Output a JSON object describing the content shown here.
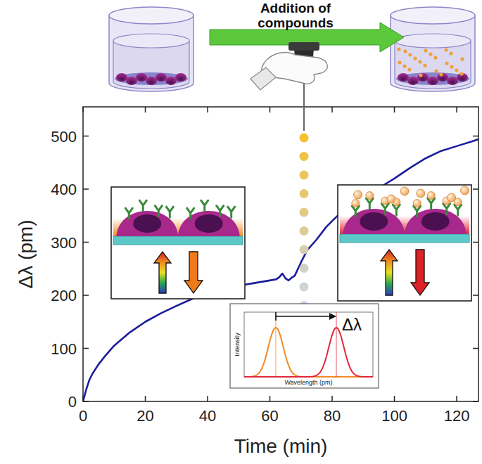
{
  "chart_data": {
    "type": "line",
    "x_label": "Time (min)",
    "y_label": "Δλ (pm)",
    "annotations": [
      "Addition of compounds"
    ],
    "inset": {
      "label": "Δλ",
      "x_label": "Wavelength (pm)",
      "y_label": "Intensity"
    },
    "x": [
      0,
      1,
      2,
      3,
      5,
      7,
      10,
      15,
      20,
      25,
      30,
      35,
      40,
      45,
      50,
      55,
      60,
      62,
      63,
      64,
      65,
      66,
      67,
      68,
      70,
      72,
      75,
      78,
      80,
      85,
      90,
      95,
      100,
      105,
      110,
      115,
      120,
      125,
      127
    ],
    "values": [
      0,
      22,
      40,
      52,
      70,
      85,
      105,
      130,
      150,
      166,
      180,
      193,
      203,
      211,
      218,
      223,
      228,
      230,
      234,
      241,
      232,
      228,
      233,
      237,
      262,
      285,
      305,
      328,
      340,
      368,
      386,
      402,
      420,
      440,
      458,
      472,
      481,
      490,
      494
    ],
    "color": "#1c1c9c",
    "xlim": [
      0,
      127
    ],
    "ylim": [
      0,
      555
    ],
    "xticks": [
      0,
      20,
      40,
      60,
      80,
      100,
      120
    ],
    "yticks": [
      0,
      100,
      200,
      300,
      400,
      500
    ]
  }
}
